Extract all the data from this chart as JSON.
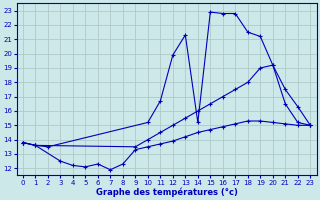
{
  "title": "Graphe des températures (°c)",
  "bg_color": "#cce8e8",
  "grid_color": "#b0c8c8",
  "line_color": "#0000bb",
  "xlim": [
    -0.5,
    23.5
  ],
  "ylim": [
    11.5,
    23.5
  ],
  "xticks": [
    0,
    1,
    2,
    3,
    4,
    5,
    6,
    7,
    8,
    9,
    10,
    11,
    12,
    13,
    14,
    15,
    16,
    17,
    18,
    19,
    20,
    21,
    22,
    23
  ],
  "yticks": [
    12,
    13,
    14,
    15,
    16,
    17,
    18,
    19,
    20,
    21,
    22,
    23
  ],
  "series1_x": [
    0,
    1,
    2,
    10,
    11,
    12,
    13,
    14,
    15,
    16,
    17,
    18,
    19,
    20,
    21,
    22,
    23
  ],
  "series1_y": [
    13.8,
    13.6,
    13.5,
    15.2,
    16.7,
    19.9,
    21.3,
    15.2,
    22.9,
    22.8,
    22.8,
    21.5,
    21.2,
    19.2,
    16.5,
    15.2,
    15.0
  ],
  "series2_x": [
    0,
    1,
    9,
    10,
    11,
    12,
    13,
    14,
    15,
    16,
    17,
    18,
    19,
    20,
    21,
    22,
    23
  ],
  "series2_y": [
    13.8,
    13.6,
    13.5,
    14.0,
    14.5,
    15.0,
    15.5,
    16.0,
    16.5,
    17.0,
    17.5,
    18.0,
    19.0,
    19.2,
    17.5,
    16.3,
    15.0
  ],
  "series3_x": [
    0,
    1,
    3,
    4,
    5,
    6,
    7,
    8,
    9,
    10,
    11,
    12,
    13,
    14,
    15,
    16,
    17,
    18,
    19,
    20,
    21,
    22,
    23
  ],
  "series3_y": [
    13.8,
    13.6,
    12.5,
    12.2,
    12.1,
    12.3,
    11.9,
    12.3,
    13.3,
    13.5,
    13.7,
    13.9,
    14.2,
    14.5,
    14.7,
    14.9,
    15.1,
    15.3,
    15.3,
    15.2,
    15.1,
    15.0,
    15.0
  ]
}
